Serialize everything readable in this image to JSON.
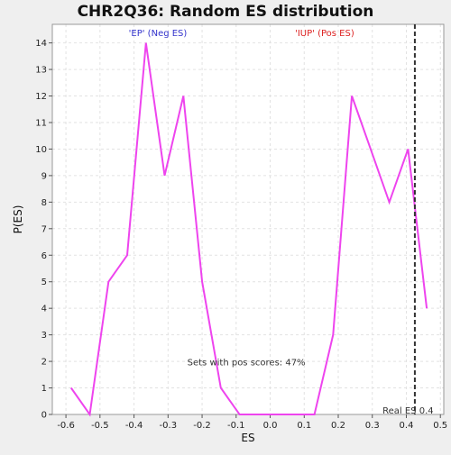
{
  "chart_data": {
    "type": "line",
    "title": "CHR2Q36: Random ES distribution",
    "xlabel": "ES",
    "ylabel": "P(ES)",
    "xlim": [
      -0.64,
      0.51
    ],
    "ylim": [
      0,
      14.7
    ],
    "x_ticks": [
      -0.6,
      -0.5,
      -0.4,
      -0.3,
      -0.2,
      -0.1,
      0.0,
      0.1,
      0.2,
      0.3,
      0.4,
      0.5
    ],
    "x_tick_labels": [
      "-0.6",
      "-0.5",
      "-0.4",
      "-0.3",
      "-0.2",
      "-0.1",
      "0.0",
      "0.1",
      "0.2",
      "0.3",
      "0.4",
      "0.5"
    ],
    "y_ticks": [
      0,
      1,
      2,
      3,
      4,
      5,
      6,
      7,
      8,
      9,
      10,
      11,
      12,
      13,
      14
    ],
    "y_tick_labels": [
      "0",
      "1",
      "2",
      "3",
      "4",
      "5",
      "6",
      "7",
      "8",
      "9",
      "10",
      "11",
      "12",
      "13",
      "14"
    ],
    "grid": true,
    "series": [
      {
        "color": "#ee44ee",
        "x": [
          -0.585,
          -0.53,
          -0.475,
          -0.42,
          -0.365,
          -0.31,
          -0.255,
          -0.2,
          -0.145,
          -0.09,
          -0.035,
          0.02,
          0.075,
          0.13,
          0.185,
          0.24,
          0.295,
          0.35,
          0.405,
          0.46
        ],
        "y": [
          1,
          0,
          5,
          6,
          14,
          9,
          12,
          5,
          1,
          0,
          0,
          0,
          0,
          0,
          3,
          12,
          10,
          8,
          10,
          4
        ]
      }
    ],
    "annotations": {
      "neg_label": "'EP' (Neg ES)",
      "neg_color": "#3333cc",
      "pos_label": "'IUP' (Pos ES)",
      "pos_color": "#dd2222",
      "pos_scores_text": "Sets with pos scores: 47%",
      "real_es_text": "Real ES 0.4",
      "real_es_value": 0.425
    }
  }
}
